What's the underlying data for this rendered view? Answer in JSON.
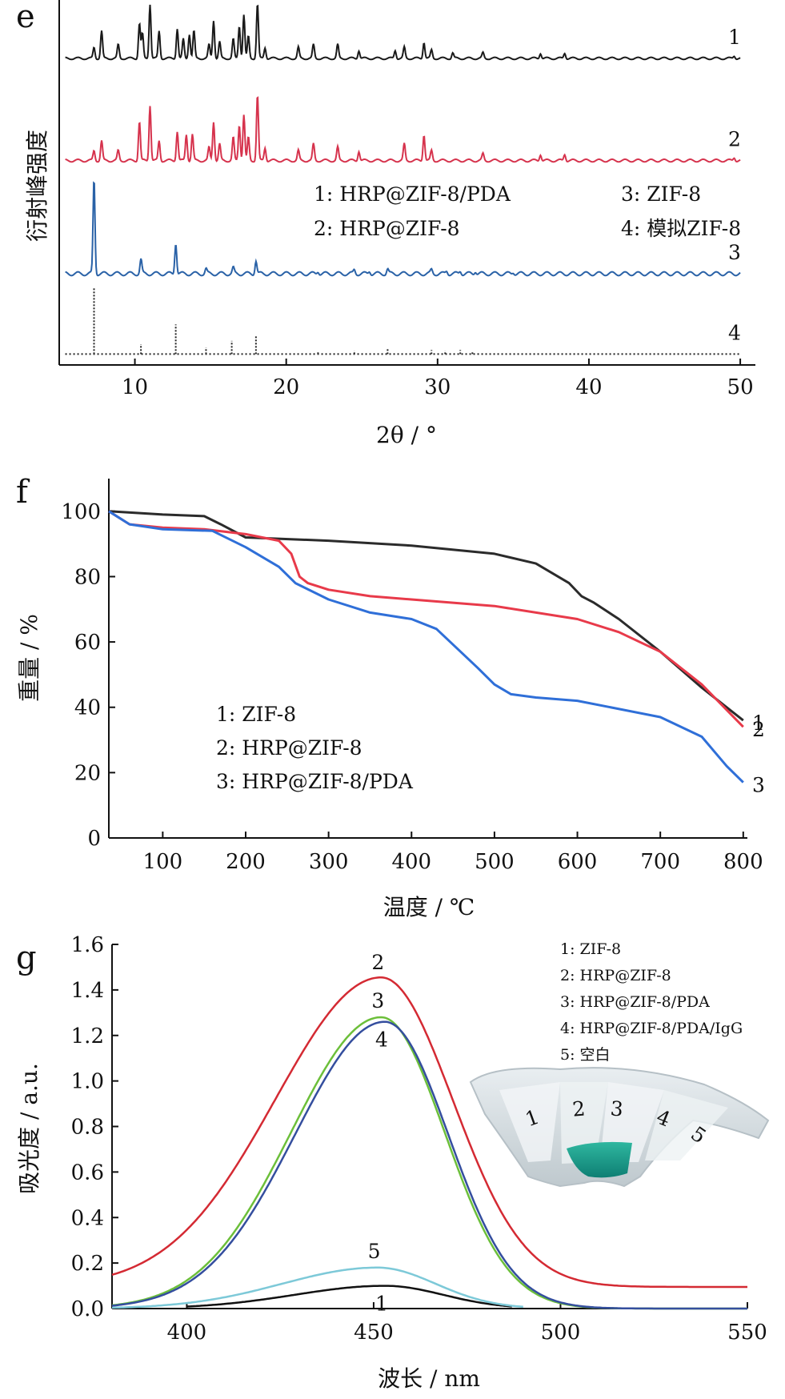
{
  "chart_data": [
    {
      "panel": "e",
      "type": "line",
      "xlabel": "2θ / °",
      "ylabel": "衍射峰强度",
      "xlim": [
        5,
        51
      ],
      "xticks": [
        10,
        20,
        30,
        40,
        50
      ],
      "series": [
        {
          "label": "1",
          "color": "#1a1a1a",
          "dashed": false,
          "offset": 0.84,
          "scale": 0.15,
          "baseline": 0.0,
          "peaks": [
            [
              7.3,
              0.2
            ],
            [
              7.8,
              0.5
            ],
            [
              8.9,
              0.25
            ],
            [
              10.3,
              0.65
            ],
            [
              10.5,
              0.45
            ],
            [
              11.0,
              1.0
            ],
            [
              11.6,
              0.5
            ],
            [
              12.8,
              0.55
            ],
            [
              13.2,
              0.35
            ],
            [
              13.6,
              0.45
            ],
            [
              13.9,
              0.5
            ],
            [
              14.9,
              0.25
            ],
            [
              15.2,
              0.7
            ],
            [
              15.6,
              0.3
            ],
            [
              16.5,
              0.35
            ],
            [
              16.9,
              0.6
            ],
            [
              17.2,
              0.8
            ],
            [
              17.5,
              0.4
            ],
            [
              18.1,
              1.0
            ],
            [
              18.6,
              0.2
            ],
            [
              20.8,
              0.2
            ],
            [
              21.8,
              0.25
            ],
            [
              23.4,
              0.25
            ],
            [
              24.8,
              0.15
            ],
            [
              27.2,
              0.15
            ],
            [
              27.8,
              0.2
            ],
            [
              29.1,
              0.3
            ],
            [
              29.6,
              0.15
            ],
            [
              31.0,
              0.1
            ],
            [
              33.0,
              0.1
            ],
            [
              36.8,
              0.1
            ],
            [
              38.4,
              0.1
            ],
            [
              49.6,
              0.05
            ]
          ]
        },
        {
          "label": "2",
          "color": "#d6334d",
          "dashed": false,
          "offset": 0.56,
          "scale": 0.18,
          "baseline": 0.0,
          "peaks": [
            [
              7.3,
              0.15
            ],
            [
              7.8,
              0.3
            ],
            [
              8.9,
              0.15
            ],
            [
              10.3,
              0.6
            ],
            [
              11.0,
              0.85
            ],
            [
              11.6,
              0.3
            ],
            [
              12.8,
              0.45
            ],
            [
              13.4,
              0.4
            ],
            [
              13.8,
              0.4
            ],
            [
              14.9,
              0.2
            ],
            [
              15.2,
              0.6
            ],
            [
              15.6,
              0.25
            ],
            [
              16.5,
              0.35
            ],
            [
              16.9,
              0.55
            ],
            [
              17.2,
              0.7
            ],
            [
              17.5,
              0.35
            ],
            [
              18.1,
              1.0
            ],
            [
              18.6,
              0.2
            ],
            [
              20.8,
              0.15
            ],
            [
              21.8,
              0.25
            ],
            [
              23.4,
              0.2
            ],
            [
              24.8,
              0.15
            ],
            [
              27.8,
              0.25
            ],
            [
              29.1,
              0.4
            ],
            [
              29.6,
              0.15
            ],
            [
              33.0,
              0.1
            ],
            [
              36.8,
              0.1
            ],
            [
              38.4,
              0.1
            ],
            [
              49.6,
              0.05
            ]
          ]
        },
        {
          "label": "3",
          "color": "#2a62a7",
          "dashed": false,
          "offset": 0.25,
          "scale": 0.26,
          "baseline": 0.0,
          "peaks": [
            [
              7.3,
              1.0
            ],
            [
              10.4,
              0.15
            ],
            [
              12.7,
              0.33
            ],
            [
              14.7,
              0.05
            ],
            [
              16.5,
              0.06
            ],
            [
              18.0,
              0.14
            ],
            [
              22.1,
              0.03
            ],
            [
              24.5,
              0.04
            ],
            [
              25.5,
              0.03
            ],
            [
              26.7,
              0.05
            ],
            [
              29.6,
              0.04
            ],
            [
              30.6,
              0.03
            ],
            [
              31.5,
              0.03
            ],
            [
              32.5,
              0.03
            ],
            [
              35.0,
              0.02
            ]
          ]
        },
        {
          "label": "4",
          "color": "#222222",
          "dashed": true,
          "offset": 0.03,
          "scale": 0.18,
          "baseline": 0.0,
          "peaks": [
            [
              7.3,
              1.0
            ],
            [
              10.4,
              0.15
            ],
            [
              12.7,
              0.45
            ],
            [
              14.7,
              0.1
            ],
            [
              16.4,
              0.2
            ],
            [
              18.0,
              0.28
            ],
            [
              22.1,
              0.04
            ],
            [
              24.5,
              0.05
            ],
            [
              26.7,
              0.08
            ],
            [
              29.6,
              0.06
            ],
            [
              30.5,
              0.05
            ],
            [
              31.5,
              0.06
            ],
            [
              32.3,
              0.04
            ]
          ]
        }
      ],
      "legend": [
        {
          "text": "1: HRP@ZIF-8/PDA"
        },
        {
          "text": "2: HRP@ZIF-8"
        },
        {
          "text": "3: ZIF-8"
        },
        {
          "text": "4: 模拟ZIF-8"
        }
      ]
    },
    {
      "panel": "f",
      "type": "line",
      "xlabel": "温度 / ℃",
      "ylabel": "重量 / %",
      "xlim": [
        35,
        805
      ],
      "ylim": [
        0,
        110
      ],
      "xticks": [
        100,
        200,
        300,
        400,
        500,
        600,
        700,
        800
      ],
      "yticks": [
        0,
        20,
        40,
        60,
        80,
        100
      ],
      "series": [
        {
          "label": "1",
          "color": "#2b2b2b",
          "x": [
            35,
            100,
            150,
            170,
            200,
            300,
            400,
            500,
            550,
            590,
            605,
            620,
            650,
            700,
            750,
            800
          ],
          "y": [
            100,
            99,
            98.5,
            96,
            92,
            91,
            89.5,
            87,
            84,
            78,
            74,
            72,
            67,
            57,
            46,
            36
          ]
        },
        {
          "label": "2",
          "color": "#e83a4a",
          "x": [
            35,
            60,
            100,
            150,
            200,
            240,
            255,
            265,
            275,
            300,
            350,
            400,
            500,
            600,
            650,
            700,
            750,
            800
          ],
          "y": [
            100,
            96,
            95,
            94.5,
            93,
            91,
            87,
            80,
            78,
            76,
            74,
            73,
            71,
            67,
            63,
            57,
            47,
            34
          ]
        },
        {
          "label": "3",
          "color": "#2f6fd8",
          "x": [
            35,
            60,
            100,
            160,
            200,
            240,
            260,
            300,
            350,
            400,
            430,
            480,
            500,
            520,
            550,
            600,
            700,
            750,
            780,
            800
          ],
          "y": [
            100,
            96,
            94.5,
            94,
            89,
            83,
            78,
            73,
            69,
            67,
            64,
            52,
            47,
            44,
            43,
            42,
            37,
            31,
            22,
            17
          ]
        }
      ],
      "legend": [
        {
          "text": "1: ZIF-8"
        },
        {
          "text": "2: HRP@ZIF-8"
        },
        {
          "text": "3: HRP@ZIF-8/PDA"
        }
      ]
    },
    {
      "panel": "g",
      "type": "line",
      "xlabel": "波长 / nm",
      "ylabel": "吸光度 / a.u.",
      "xlim": [
        380,
        550
      ],
      "ylim": [
        0,
        1.6
      ],
      "xticks": [
        400,
        450,
        500,
        550
      ],
      "yticks": [
        0.0,
        0.2,
        0.4,
        0.6,
        0.8,
        1.0,
        1.2,
        1.4,
        1.6
      ],
      "series": [
        {
          "label": "1",
          "color": "#111111",
          "peak": 453,
          "amp": 0.1,
          "base": 0,
          "wl": 34,
          "wr": 22,
          "clip": [
            400,
            487
          ]
        },
        {
          "label": "2",
          "color": "#d42a33",
          "peak": 452,
          "amp": 1.36,
          "base": 0.095,
          "wl": 40,
          "wr": 27
        },
        {
          "label": "3",
          "color": "#6cbf3a",
          "peak": 452,
          "amp": 1.28,
          "base": 0,
          "wl": 34,
          "wr": 24
        },
        {
          "label": "4",
          "color": "#344e9e",
          "peak": 453,
          "amp": 1.26,
          "base": 0,
          "wl": 34,
          "wr": 24
        },
        {
          "label": "5",
          "color": "#7dc9d8",
          "peak": 451,
          "amp": 0.18,
          "base": 0,
          "wl": 36,
          "wr": 22,
          "clip": [
            380,
            490
          ]
        }
      ],
      "legend": [
        {
          "text": "1: ZIF-8"
        },
        {
          "text": "2: HRP@ZIF-8"
        },
        {
          "text": "3: HRP@ZIF-8/PDA"
        },
        {
          "text": "4: HRP@ZIF-8/PDA/IgG"
        },
        {
          "text": "5: 空白"
        }
      ],
      "inset_labels": [
        "1",
        "2",
        "3",
        "4",
        "5"
      ]
    }
  ]
}
